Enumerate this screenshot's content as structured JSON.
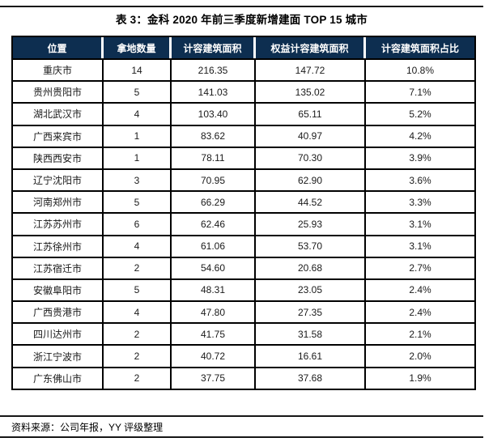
{
  "header": {
    "title": "表 3：金科 2020 年前三季度新增建面 TOP 15 城市"
  },
  "footer": {
    "source": "资料来源：公司年报，YY 评级整理"
  },
  "colors": {
    "header_bg": "#0d2e50",
    "header_text": "#ffffff",
    "grid_border": "#000000",
    "rule": "#161616",
    "body_text": "#1a1a1a"
  },
  "chart_data": {
    "type": "table",
    "title": "表 3：金科 2020 年前三季度新增建面 TOP 15 城市",
    "columns": [
      "位置",
      "拿地数量",
      "计容建筑面积",
      "权益计容建筑面积",
      "计容建筑面积占比"
    ],
    "rows": [
      [
        "重庆市",
        "14",
        "216.35",
        "147.72",
        "10.8%"
      ],
      [
        "贵州贵阳市",
        "5",
        "141.03",
        "135.02",
        "7.1%"
      ],
      [
        "湖北武汉市",
        "4",
        "103.40",
        "65.11",
        "5.2%"
      ],
      [
        "广西来宾市",
        "1",
        "83.62",
        "40.97",
        "4.2%"
      ],
      [
        "陕西西安市",
        "1",
        "78.11",
        "70.30",
        "3.9%"
      ],
      [
        "辽宁沈阳市",
        "3",
        "70.95",
        "62.90",
        "3.6%"
      ],
      [
        "河南郑州市",
        "5",
        "66.29",
        "44.52",
        "3.3%"
      ],
      [
        "江苏苏州市",
        "6",
        "62.46",
        "25.93",
        "3.1%"
      ],
      [
        "江苏徐州市",
        "4",
        "61.06",
        "53.70",
        "3.1%"
      ],
      [
        "江苏宿迁市",
        "2",
        "54.60",
        "20.68",
        "2.7%"
      ],
      [
        "安徽阜阳市",
        "5",
        "48.31",
        "23.05",
        "2.4%"
      ],
      [
        "广西贵港市",
        "4",
        "47.80",
        "27.35",
        "2.4%"
      ],
      [
        "四川达州市",
        "2",
        "41.75",
        "31.58",
        "2.1%"
      ],
      [
        "浙江宁波市",
        "2",
        "40.72",
        "16.61",
        "2.0%"
      ],
      [
        "广东佛山市",
        "2",
        "37.75",
        "37.68",
        "1.9%"
      ]
    ],
    "source_note": "资料来源：公司年报，YY 评级整理",
    "layout": {
      "header_row_bg": "#0d2e50",
      "grid": "solid-black",
      "value_unit_hint": "万方 (not shown on screen)"
    }
  }
}
